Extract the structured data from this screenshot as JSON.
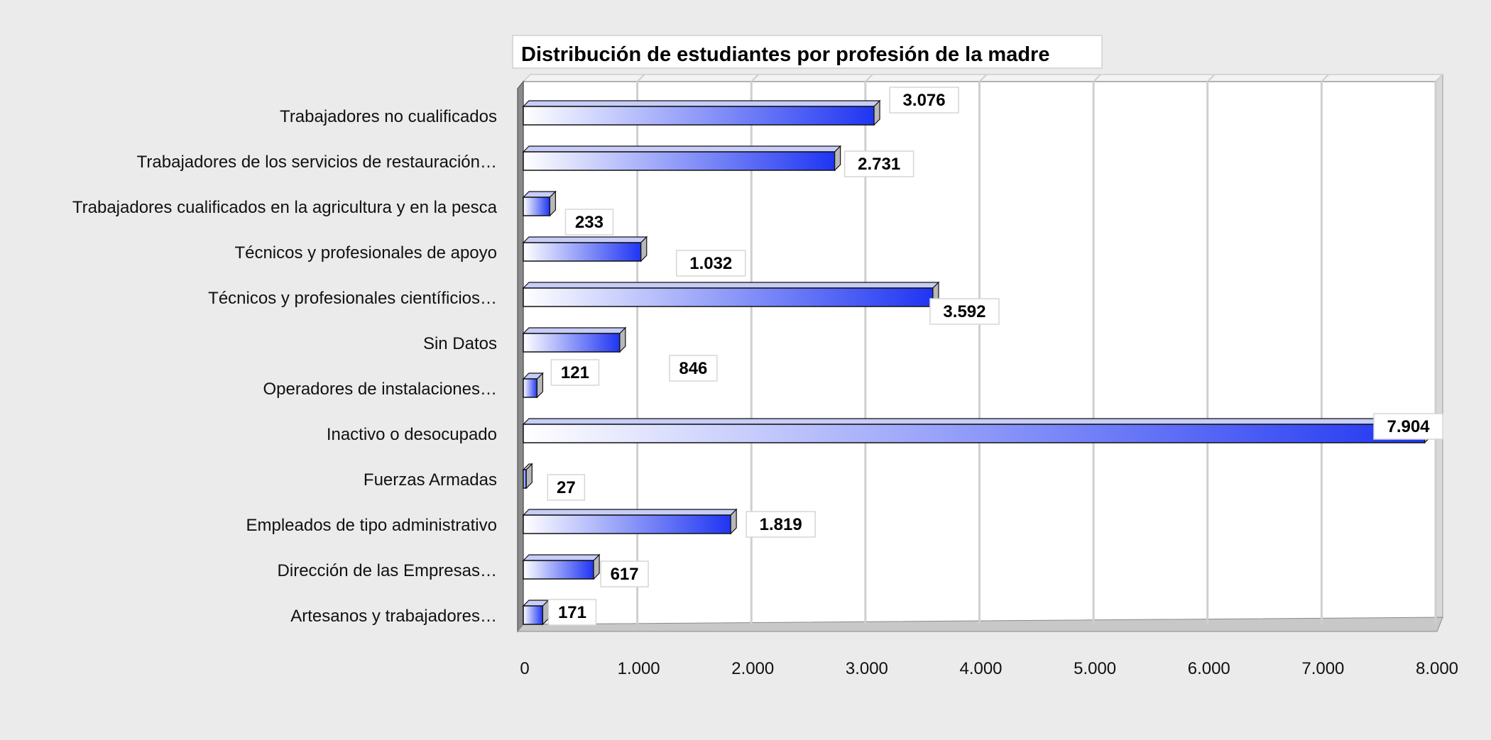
{
  "chart_data": {
    "type": "bar",
    "orientation": "horizontal",
    "title": "Distribución de estudiantes por profesión de la madre",
    "xlabel": "",
    "ylabel": "",
    "categories": [
      "Trabajadores no cualificados",
      "Trabajadores de los servicios de restauración…",
      "Trabajadores cualificados en la agricultura y en la pesca",
      "Técnicos y profesionales de apoyo",
      "Técnicos y profesionales científicios…",
      "Sin Datos",
      "Operadores de instalaciones…",
      "Inactivo o desocupado",
      "Fuerzas Armadas",
      "Empleados de tipo administrativo",
      "Dirección de las Empresas…",
      "Artesanos y trabajadores…"
    ],
    "values": [
      3076,
      2731,
      233,
      1032,
      3592,
      846,
      121,
      7904,
      27,
      1819,
      617,
      171
    ],
    "data_labels": [
      "3.076",
      "2.731",
      "233",
      "1.032",
      "3.592",
      "846",
      "121",
      "7.904",
      "27",
      "1.819",
      "617",
      "171"
    ],
    "xlim": [
      0,
      8000
    ],
    "x_ticks": [
      0,
      1000,
      2000,
      3000,
      4000,
      5000,
      6000,
      7000,
      8000
    ],
    "x_tick_labels": [
      "0",
      "1.000",
      "2.000",
      "3.000",
      "4.000",
      "5.000",
      "6.000",
      "7.000",
      "8.000"
    ],
    "grid": true,
    "legend": "none",
    "colors": {
      "bar_start": "#ffffff",
      "bar_end": "#1f35f2",
      "background": "#ebebeb",
      "plot_background": "#ffffff",
      "gridline": "#cfcfcf",
      "wall_side": "#8a8a8a"
    }
  }
}
